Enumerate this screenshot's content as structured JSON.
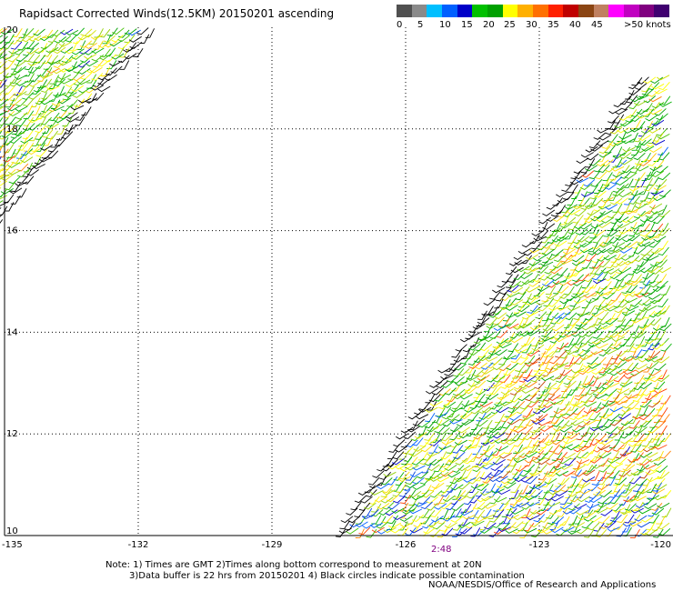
{
  "title": "Rapidsact Corrected Winds(12.5KM) 20150201 ascending",
  "legend": {
    "colors": [
      "#505050",
      "#8a8a8a",
      "#00bfff",
      "#0060ff",
      "#0000c8",
      "#00c000",
      "#00a000",
      "#ffff00",
      "#ffb000",
      "#ff7000",
      "#ff2000",
      "#c00000",
      "#8b4513",
      "#c08060",
      "#ff00ff",
      "#c000c0",
      "#800080",
      "#400070"
    ],
    "labels": [
      "0",
      "5",
      "10",
      "15",
      "20",
      "25",
      "30",
      "35",
      "40",
      "45",
      ">50 knots"
    ]
  },
  "axes": {
    "lon_labels": [
      "-135",
      "-132",
      "-129",
      "-126",
      "-123",
      "-120"
    ],
    "lat_labels": [
      "20",
      "18",
      "16",
      "14",
      "12",
      "10"
    ]
  },
  "time_label": "2:48",
  "notes": [
    "Note: 1) Times are GMT 2)Times along bottom correspond to measurement at 20N",
    "3)Data buffer is 22 hrs from 20150201 4) Black circles indicate possible contamination"
  ],
  "credit": "NOAA/NESDIS/Office of Research and Applications"
}
